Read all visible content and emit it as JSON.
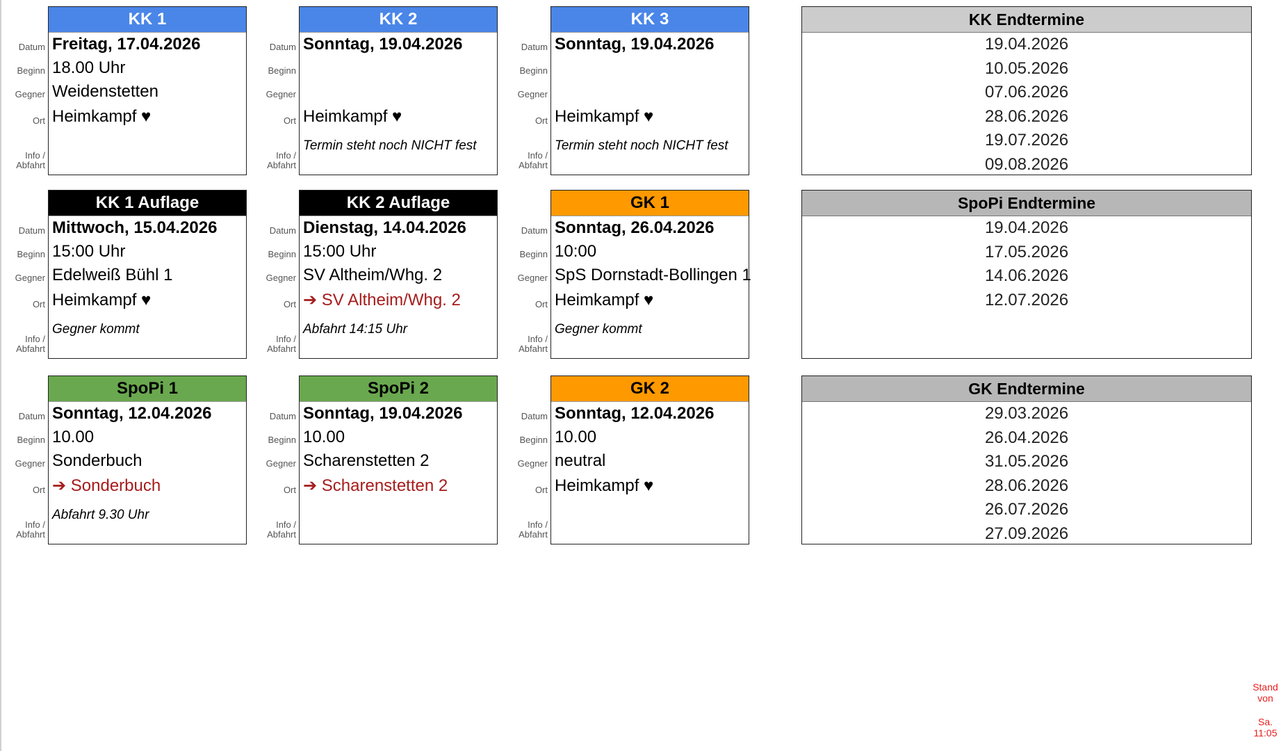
{
  "labels": {
    "date": "Datum",
    "begin": "Beginn",
    "opponent": "Gegner",
    "location": "Ort",
    "info": "Info /",
    "info2": "Abfahrt"
  },
  "cards": [
    {
      "title": "KK 1",
      "color": "#4a86e8",
      "title_color": "#ffffff",
      "date": "Freitag, 17.04.2026",
      "begin": "18.00 Uhr",
      "opponent": "Weidenstetten",
      "location": "Heimkampf ♥",
      "away": false,
      "info": ""
    },
    {
      "title": "KK 2",
      "color": "#4a86e8",
      "title_color": "#ffffff",
      "date": "Sonntag, 19.04.2026",
      "begin": "",
      "opponent": "",
      "location": "Heimkampf ♥",
      "away": false,
      "info": "Termin steht noch NICHT fest"
    },
    {
      "title": "KK 3",
      "color": "#4a86e8",
      "title_color": "#ffffff",
      "date": "Sonntag, 19.04.2026",
      "begin": "",
      "opponent": "",
      "location": "Heimkampf ♥",
      "away": false,
      "info": "Termin steht noch NICHT fest"
    },
    {
      "title": "KK 1 Auflage",
      "color": "#000000",
      "title_color": "#ffffff",
      "date": "Mittwoch, 15.04.2026",
      "begin": "15:00 Uhr",
      "opponent": "Edelweiß Bühl 1",
      "location": "Heimkampf ♥",
      "away": false,
      "info": "Gegner kommt"
    },
    {
      "title": "KK 2 Auflage",
      "color": "#000000",
      "title_color": "#ffffff",
      "date": "Dienstag, 14.04.2026",
      "begin": "15:00 Uhr",
      "opponent": "SV Altheim/Whg. 2",
      "location": "➔ SV Altheim/Whg. 2",
      "away": true,
      "info": "Abfahrt 14:15 Uhr"
    },
    {
      "title": "GK 1",
      "color": "#ff9900",
      "title_color": "#000000",
      "date": "Sonntag, 26.04.2026",
      "begin": "10:00",
      "opponent": "SpS Dornstadt-Bollingen 1",
      "location": "Heimkampf ♥",
      "away": false,
      "info": "Gegner kommt",
      "nolabels": true
    },
    {
      "title": "SpoPi 1",
      "color": "#6aa84f",
      "title_color": "#000000",
      "date": "Sonntag, 12.04.2026",
      "begin": "10.00",
      "opponent": "Sonderbuch",
      "location": "➔ Sonderbuch",
      "away": true,
      "info": "Abfahrt 9.30 Uhr"
    },
    {
      "title": "SpoPi 2",
      "color": "#6aa84f",
      "title_color": "#000000",
      "date": "Sonntag, 19.04.2026",
      "begin": "10.00",
      "opponent": "Scharenstetten 2",
      "location": "➔ Scharenstetten 2",
      "away": true,
      "info": ""
    },
    {
      "title": "GK 2",
      "color": "#ff9900",
      "title_color": "#000000",
      "date": "Sonntag, 12.04.2026",
      "begin": "10.00",
      "opponent": "neutral",
      "location": "Heimkampf ♥",
      "away": false,
      "info": "",
      "nolabels": true
    }
  ],
  "endtermine": [
    {
      "title": "KK Endtermine",
      "color": "#cccccc",
      "dates": [
        "19.04.2026",
        "10.05.2026",
        "07.06.2026",
        "28.06.2026",
        "19.07.2026",
        "09.08.2026"
      ]
    },
    {
      "title": "SpoPi Endtermine",
      "color": "#b7b7b7",
      "dates": [
        "19.04.2026",
        "17.05.2026",
        "14.06.2026",
        "12.07.2026"
      ]
    },
    {
      "title": "GK Endtermine",
      "color": "#b7b7b7",
      "dates": [
        "29.03.2026",
        "26.04.2026",
        "31.05.2026",
        "28.06.2026",
        "26.07.2026",
        "27.09.2026"
      ]
    }
  ],
  "stand": {
    "line1": "Stand",
    "line2": "von",
    "line3": "Sa.",
    "line4": "11:05"
  }
}
